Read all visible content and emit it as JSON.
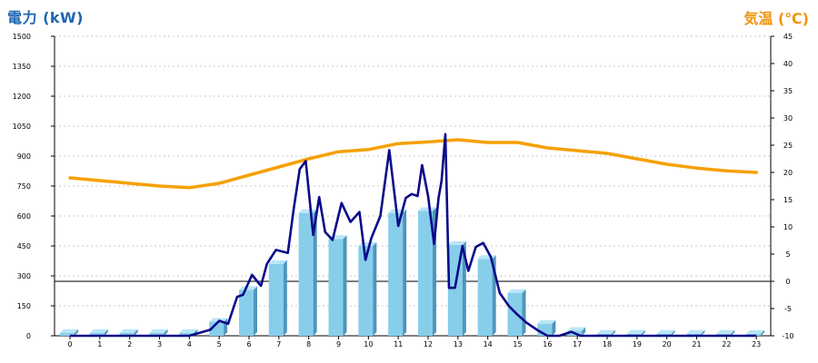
{
  "chart_data": {
    "type": "bar+line",
    "y_left_label": "電力 (kW)",
    "y_right_label": "気温 (℃)",
    "y_left_range": [
      0,
      1500
    ],
    "y_right_range": [
      -10,
      45
    ],
    "y_left_ticks": [
      "0",
      "150",
      "300",
      "450",
      "600",
      "750",
      "900",
      "1050",
      "1200",
      "1350",
      "1500"
    ],
    "y_right_ticks": [
      "-10",
      "-5",
      "0",
      "5",
      "10",
      "15",
      "20",
      "25",
      "30",
      "35",
      "40",
      "45"
    ],
    "x_categories": [
      "0",
      "1",
      "2",
      "3",
      "4",
      "5",
      "6",
      "7",
      "8",
      "9",
      "10",
      "11",
      "12",
      "13",
      "14",
      "15",
      "16",
      "17",
      "18",
      "19",
      "20",
      "21",
      "22",
      "23"
    ],
    "grid": "horizontal dotted",
    "bar_values": [
      15,
      15,
      15,
      15,
      15,
      70,
      230,
      360,
      615,
      485,
      450,
      615,
      625,
      455,
      385,
      215,
      60,
      25,
      10,
      10,
      10,
      10,
      10,
      10
    ],
    "power_line": [
      [
        0,
        0
      ],
      [
        1,
        0
      ],
      [
        2,
        0
      ],
      [
        3,
        0
      ],
      [
        4,
        0
      ],
      [
        4.7,
        30
      ],
      [
        5,
        75
      ],
      [
        5.3,
        60
      ],
      [
        5.6,
        195
      ],
      [
        5.8,
        205
      ],
      [
        6.1,
        305
      ],
      [
        6.4,
        250
      ],
      [
        6.6,
        360
      ],
      [
        6.9,
        430
      ],
      [
        7.3,
        415
      ],
      [
        7.5,
        640
      ],
      [
        7.7,
        835
      ],
      [
        7.9,
        875
      ],
      [
        8.15,
        505
      ],
      [
        8.35,
        695
      ],
      [
        8.55,
        520
      ],
      [
        8.8,
        480
      ],
      [
        9.1,
        665
      ],
      [
        9.4,
        570
      ],
      [
        9.7,
        620
      ],
      [
        9.9,
        380
      ],
      [
        10.1,
        490
      ],
      [
        10.4,
        600
      ],
      [
        10.7,
        930
      ],
      [
        11.0,
        550
      ],
      [
        11.25,
        690
      ],
      [
        11.45,
        710
      ],
      [
        11.65,
        700
      ],
      [
        11.8,
        855
      ],
      [
        12.0,
        700
      ],
      [
        12.2,
        460
      ],
      [
        12.35,
        690
      ],
      [
        12.45,
        775
      ],
      [
        12.58,
        1010
      ],
      [
        12.7,
        240
      ],
      [
        12.9,
        240
      ],
      [
        13.15,
        450
      ],
      [
        13.35,
        325
      ],
      [
        13.6,
        445
      ],
      [
        13.85,
        465
      ],
      [
        14.1,
        395
      ],
      [
        14.4,
        215
      ],
      [
        14.7,
        150
      ],
      [
        15.0,
        105
      ],
      [
        15.3,
        65
      ],
      [
        15.7,
        25
      ],
      [
        16.0,
        0
      ],
      [
        16.4,
        0
      ],
      [
        16.8,
        20
      ],
      [
        17.1,
        0
      ],
      [
        18,
        0
      ],
      [
        23,
        0
      ]
    ],
    "temperature_line": [
      [
        0,
        19
      ],
      [
        1,
        18.5
      ],
      [
        2,
        18
      ],
      [
        3,
        17.5
      ],
      [
        4,
        17.2
      ],
      [
        5,
        18
      ],
      [
        6,
        19.5
      ],
      [
        7,
        21
      ],
      [
        8,
        22.5
      ],
      [
        9,
        23.8
      ],
      [
        10,
        24.2
      ],
      [
        11,
        25.3
      ],
      [
        12,
        25.6
      ],
      [
        13,
        26
      ],
      [
        14,
        25.5
      ],
      [
        15,
        25.5
      ],
      [
        16,
        24.5
      ],
      [
        17,
        24
      ],
      [
        18,
        23.5
      ],
      [
        19,
        22.5
      ],
      [
        20,
        21.5
      ],
      [
        21,
        20.8
      ],
      [
        22,
        20.3
      ],
      [
        23,
        20
      ]
    ],
    "series": [
      {
        "name": "",
        "kind": "bar",
        "color": "#87ceeb"
      },
      {
        "name": "",
        "kind": "line",
        "axis": "left",
        "color": "#0a0a8a"
      },
      {
        "name": "",
        "kind": "line",
        "axis": "right",
        "color": "#f5a000"
      }
    ]
  },
  "colors": {
    "left_title": "#1f66b3",
    "right_title": "#f0920a",
    "bar_front": "#87ceeb",
    "bar_side": "#4f95bd",
    "bar_top": "#b9e6f7",
    "power_line": "#0a0a8a",
    "temp_line": "#f5a000",
    "grid": "#b5b5b5"
  }
}
